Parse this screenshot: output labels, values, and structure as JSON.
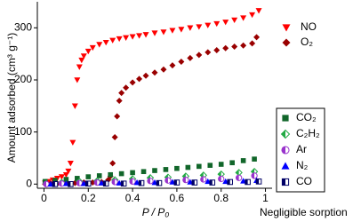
{
  "chart_data": {
    "type": "scatter",
    "y_label": "Amount adsorbed (cm³ g⁻¹)",
    "x_label": "P / P₀",
    "annotation": "Negligible sorption",
    "xlim": [
      -0.03,
      1.03
    ],
    "ylim": [
      -8,
      350
    ],
    "xticks": [
      0,
      0.2,
      0.4,
      0.6,
      0.8,
      1
    ],
    "yticks": [
      0,
      100,
      200,
      300
    ],
    "series": [
      {
        "name": "NO",
        "color": "#ff0000",
        "marker": "triangle-down",
        "legend": "top",
        "x": [
          0.005,
          0.02,
          0.04,
          0.06,
          0.08,
          0.1,
          0.11,
          0.12,
          0.13,
          0.14,
          0.15,
          0.16,
          0.17,
          0.18,
          0.2,
          0.22,
          0.25,
          0.28,
          0.31,
          0.34,
          0.37,
          0.4,
          0.43,
          0.46,
          0.5,
          0.54,
          0.58,
          0.62,
          0.66,
          0.7,
          0.74,
          0.78,
          0.82,
          0.86,
          0.9,
          0.94,
          0.97
        ],
        "values": [
          2,
          5,
          8,
          11,
          14,
          18,
          25,
          40,
          80,
          150,
          200,
          225,
          238,
          246,
          255,
          262,
          268,
          272,
          276,
          279,
          281,
          283,
          285,
          287,
          290,
          292,
          295,
          297,
          300,
          302,
          305,
          308,
          311,
          315,
          319,
          325,
          333
        ]
      },
      {
        "name": "O₂",
        "color": "#990000",
        "marker": "diamond",
        "legend": "top",
        "x": [
          0.005,
          0.03,
          0.06,
          0.1,
          0.14,
          0.18,
          0.22,
          0.26,
          0.29,
          0.3,
          0.31,
          0.32,
          0.33,
          0.34,
          0.35,
          0.37,
          0.4,
          0.43,
          0.46,
          0.5,
          0.54,
          0.58,
          0.62,
          0.66,
          0.7,
          0.74,
          0.78,
          0.82,
          0.86,
          0.9,
          0.94,
          0.96
        ],
        "values": [
          0,
          1,
          1,
          2,
          2,
          3,
          3,
          4,
          8,
          15,
          40,
          90,
          130,
          160,
          175,
          185,
          195,
          202,
          208,
          214,
          220,
          228,
          235,
          242,
          248,
          253,
          257,
          261,
          264,
          266,
          270,
          282
        ]
      },
      {
        "name": "CO₂",
        "color": "#11662a",
        "marker": "square",
        "legend": "box",
        "x": [
          0.005,
          0.05,
          0.1,
          0.15,
          0.2,
          0.25,
          0.3,
          0.35,
          0.4,
          0.45,
          0.5,
          0.55,
          0.6,
          0.65,
          0.7,
          0.75,
          0.8,
          0.85,
          0.9,
          0.95
        ],
        "values": [
          5,
          7,
          9,
          11,
          14,
          16,
          18,
          20,
          22,
          24,
          26,
          28,
          30,
          32,
          34,
          36,
          38,
          41,
          45,
          48
        ]
      },
      {
        "name": "C₂H₂",
        "color": "#22aa44",
        "marker": "diamond-half",
        "legend": "box",
        "x": [
          0.01,
          0.08,
          0.16,
          0.24,
          0.32,
          0.4,
          0.48,
          0.56,
          0.64,
          0.72,
          0.8,
          0.88,
          0.95
        ],
        "values": [
          1,
          3,
          5,
          6,
          8,
          10,
          12,
          13,
          15,
          17,
          19,
          22,
          24
        ]
      },
      {
        "name": "Ar",
        "color": "#9933cc",
        "marker": "circle-half",
        "legend": "box",
        "x": [
          0.01,
          0.08,
          0.16,
          0.24,
          0.32,
          0.4,
          0.48,
          0.56,
          0.64,
          0.72,
          0.8,
          0.88,
          0.95
        ],
        "values": [
          0,
          1,
          2,
          3,
          4,
          5,
          6,
          7,
          8,
          9,
          10,
          12,
          16
        ]
      },
      {
        "name": "N₂",
        "color": "#0000ff",
        "marker": "triangle-up",
        "legend": "box",
        "x": [
          0.03,
          0.1,
          0.18,
          0.26,
          0.34,
          0.42,
          0.5,
          0.58,
          0.66,
          0.74,
          0.82,
          0.9,
          0.96
        ],
        "values": [
          0,
          1,
          1,
          2,
          2,
          3,
          3,
          4,
          4,
          5,
          5,
          6,
          7
        ]
      },
      {
        "name": "CO",
        "color": "#000066",
        "marker": "square-half",
        "legend": "box",
        "x": [
          0.05,
          0.12,
          0.2,
          0.28,
          0.36,
          0.44,
          0.52,
          0.6,
          0.68,
          0.76,
          0.84,
          0.92,
          0.97
        ],
        "values": [
          0,
          0,
          1,
          1,
          1,
          2,
          2,
          3,
          3,
          3,
          4,
          4,
          5
        ]
      }
    ]
  }
}
